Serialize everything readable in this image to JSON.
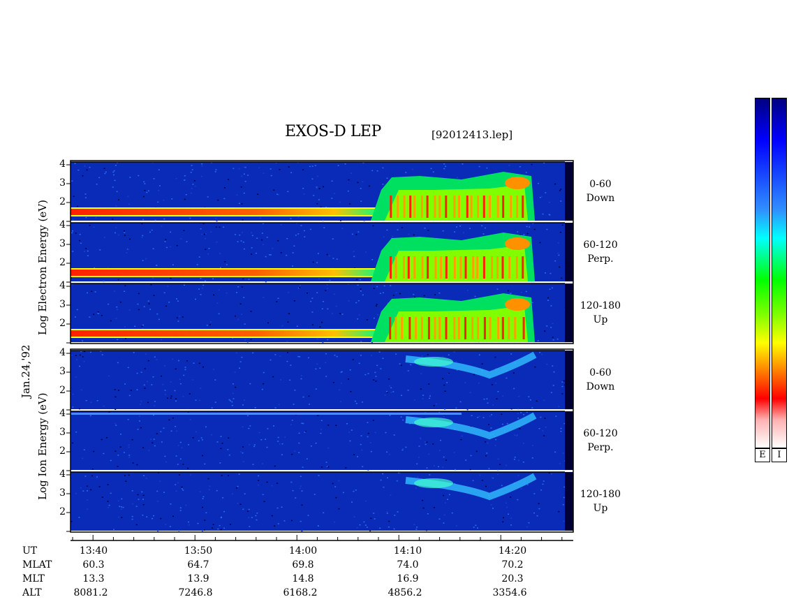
{
  "chart_data": {
    "type": "heatmap",
    "title": "EXOS-D LEP",
    "file_tag": "[92012413.lep]",
    "date_label": "Jan.24,'92",
    "group_labels": [
      {
        "id": "electron",
        "text": "Log   Electron   Energy (eV)"
      },
      {
        "id": "ion",
        "text": "Log   Ion   Energy (eV)"
      }
    ],
    "y_ticks": [
      "4",
      "3",
      "2",
      ""
    ],
    "panels": [
      {
        "species": "electron",
        "pitch": "0-60",
        "dir": "Down"
      },
      {
        "species": "electron",
        "pitch": "60-120",
        "dir": "Perp."
      },
      {
        "species": "electron",
        "pitch": "120-180",
        "dir": "Up"
      },
      {
        "species": "ion",
        "pitch": "0-60",
        "dir": "Down"
      },
      {
        "species": "ion",
        "pitch": "60-120",
        "dir": "Perp."
      },
      {
        "species": "ion",
        "pitch": "120-180",
        "dir": "Up"
      }
    ],
    "x_axis": {
      "label": "UT",
      "ticks": [
        "13:40",
        "13:50",
        "14:00",
        "14:10",
        "14:20"
      ]
    },
    "orbit_rows": [
      {
        "label": "MLAT",
        "values": [
          "60.3",
          "64.7",
          "69.8",
          "74.0",
          "70.2"
        ]
      },
      {
        "label": "MLT",
        "values": [
          "13.3",
          "13.9",
          "14.8",
          "16.9",
          "20.3"
        ]
      },
      {
        "label": "ALT",
        "values": [
          "8081.2",
          "7246.8",
          "6168.2",
          "4856.2",
          "3354.6"
        ]
      }
    ],
    "colorbars": [
      {
        "label": "E"
      },
      {
        "label": "I"
      }
    ],
    "colors": {
      "background": "#0a2bb8",
      "colormap": [
        "#ffffff",
        "#ffb0b0",
        "#ff0000",
        "#ff8000",
        "#ffff00",
        "#00ff00",
        "#00ffff",
        "#3090ff",
        "#0000ff",
        "#000080"
      ]
    }
  }
}
